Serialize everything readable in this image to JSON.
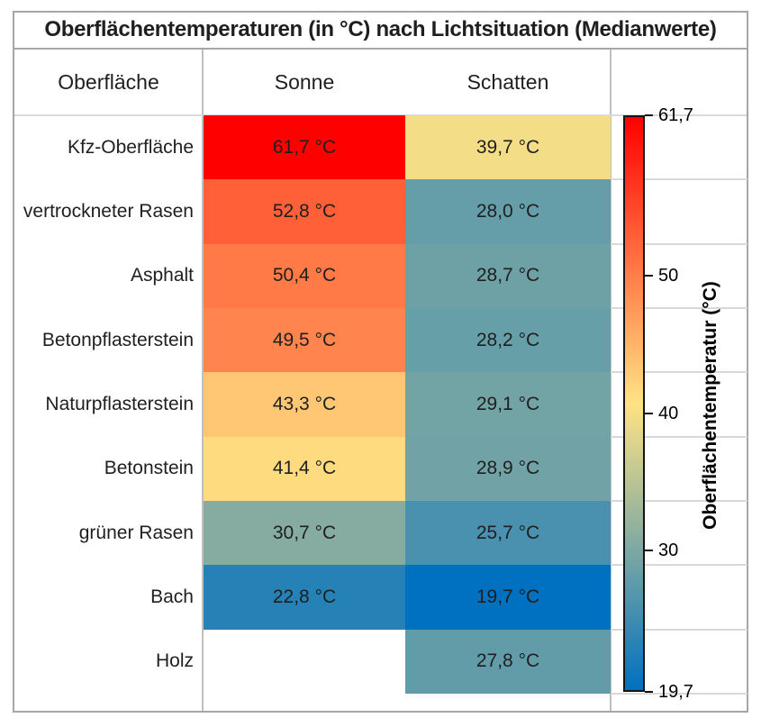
{
  "title": "Oberflächentemperaturen (in °C) nach Lichtsituation (Medianwerte)",
  "columns": {
    "surface": "Oberfläche",
    "sun": "Sonne",
    "shade": "Schatten"
  },
  "rows": [
    {
      "label": "Kfz-Oberfläche",
      "sun": "61,7 °C",
      "sun_value": 61.7,
      "shade": "39,7 °C",
      "shade_value": 39.7
    },
    {
      "label": "vertrockneter Rasen",
      "sun": "52,8 °C",
      "sun_value": 52.8,
      "shade": "28,0 °C",
      "shade_value": 28.0
    },
    {
      "label": "Asphalt",
      "sun": "50,4 °C",
      "sun_value": 50.4,
      "shade": "28,7 °C",
      "shade_value": 28.7
    },
    {
      "label": "Betonpflasterstein",
      "sun": "49,5 °C",
      "sun_value": 49.5,
      "shade": "28,2 °C",
      "shade_value": 28.2
    },
    {
      "label": "Naturpflasterstein",
      "sun": "43,3 °C",
      "sun_value": 43.3,
      "shade": "29,1 °C",
      "shade_value": 29.1
    },
    {
      "label": "Betonstein",
      "sun": "41,4 °C",
      "sun_value": 41.4,
      "shade": "28,9 °C",
      "shade_value": 28.9
    },
    {
      "label": "grüner Rasen",
      "sun": "30,7 °C",
      "sun_value": 30.7,
      "shade": "25,7 °C",
      "shade_value": 25.7
    },
    {
      "label": "Bach",
      "sun": "22,8 °C",
      "sun_value": 22.8,
      "shade": "19,7 °C",
      "shade_value": 19.7
    },
    {
      "label": "Holz",
      "sun": null,
      "sun_value": null,
      "shade": "27,8 °C",
      "shade_value": 27.8
    }
  ],
  "colorbar": {
    "title": "Oberflächentemperatur (°C)",
    "min": 19.7,
    "max": 61.7,
    "ticks": [
      {
        "value": 61.7,
        "label": "61,7"
      },
      {
        "value": 50,
        "label": "50"
      },
      {
        "value": 40,
        "label": "40"
      },
      {
        "value": 30,
        "label": "30"
      },
      {
        "value": 19.7,
        "label": "19,7"
      }
    ],
    "stops": [
      {
        "value": 19.7,
        "color": "#0070C0"
      },
      {
        "value": 40.7,
        "color": "#FFE384"
      },
      {
        "value": 61.7,
        "color": "#FF0000"
      }
    ]
  },
  "colors": {
    "outer_border": "#A6A6A6",
    "divider": "#BFBFBF",
    "gridline": "#D9D9D9",
    "text": "#1F1F1F"
  },
  "chart_data": {
    "type": "heatmap",
    "title": "Oberflächentemperaturen (in °C) nach Lichtsituation (Medianwerte)",
    "rows": [
      "Kfz-Oberfläche",
      "vertrockneter Rasen",
      "Asphalt",
      "Betonpflasterstein",
      "Naturpflasterstein",
      "Betonstein",
      "grüner Rasen",
      "Bach",
      "Holz"
    ],
    "columns": [
      "Sonne",
      "Schatten"
    ],
    "values": [
      [
        61.7,
        39.7
      ],
      [
        52.8,
        28.0
      ],
      [
        50.4,
        28.7
      ],
      [
        49.5,
        28.2
      ],
      [
        43.3,
        29.1
      ],
      [
        41.4,
        28.9
      ],
      [
        30.7,
        25.7
      ],
      [
        22.8,
        19.7
      ],
      [
        null,
        27.8
      ]
    ],
    "unit": "°C",
    "colorbar": {
      "label": "Oberflächentemperatur (°C)",
      "min": 19.7,
      "max": 61.7,
      "ticks": [
        61.7,
        50,
        40,
        30,
        19.7
      ],
      "orientation": "vertical",
      "high_color": "#FF0000",
      "mid_color": "#FFE384",
      "low_color": "#0070C0"
    }
  }
}
